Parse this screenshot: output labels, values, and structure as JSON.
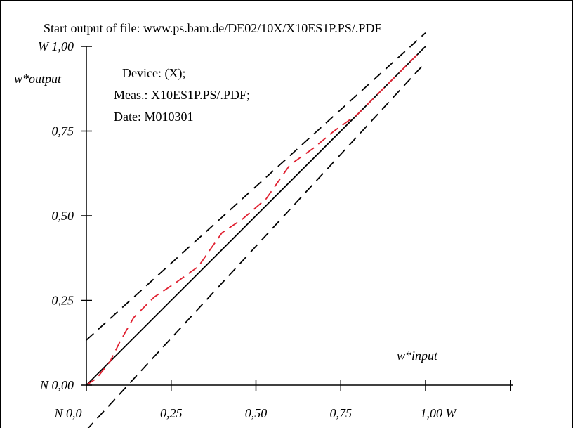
{
  "chart_data": {
    "type": "line",
    "title": "Start output of file: www.ps.bam.de/DE02/10X/X10ES1P.PS/.PDF",
    "info_lines": [
      "Device: (X);",
      "Meas.: X10ES1P.PS/.PDF;",
      "Date: M010301"
    ],
    "xlabel": "w*input",
    "ylabel": "w*output",
    "xlim": [
      0,
      1.25
    ],
    "ylim": [
      0,
      1
    ],
    "x_ticks": [
      {
        "value": 0.0,
        "label": "N  0,0"
      },
      {
        "value": 0.25,
        "label": "0,25"
      },
      {
        "value": 0.5,
        "label": "0,50"
      },
      {
        "value": 0.75,
        "label": "0,75"
      },
      {
        "value": 1.0,
        "label": "1,00  W"
      }
    ],
    "x_tick_extra": [
      1.25
    ],
    "y_ticks": [
      {
        "value": 0.0,
        "label": "N 0,00"
      },
      {
        "value": 0.25,
        "label": "0,25"
      },
      {
        "value": 0.5,
        "label": "0,50"
      },
      {
        "value": 0.75,
        "label": "0,75"
      },
      {
        "value": 1.0,
        "label": "W 1,00"
      }
    ],
    "series": [
      {
        "style": "solid",
        "color": "#000000",
        "x": [
          0,
          1
        ],
        "y": [
          0,
          1
        ]
      },
      {
        "style": "dashed",
        "color": "#000000",
        "x": [
          0,
          1
        ],
        "y": [
          0.133,
          1.04
        ]
      },
      {
        "style": "dashed",
        "color": "#000000",
        "x": [
          0,
          1
        ],
        "y": [
          -0.133,
          0.953
        ]
      },
      {
        "style": "dashed",
        "color": "#e02030",
        "x": [
          0,
          0.03,
          0.07,
          0.1,
          0.14,
          0.2,
          0.26,
          0.33,
          0.4,
          0.46,
          0.53,
          0.6,
          0.67,
          0.73,
          0.8,
          0.87,
          0.93,
          0.98
        ],
        "y": [
          0,
          0.02,
          0.07,
          0.13,
          0.2,
          0.26,
          0.3,
          0.35,
          0.45,
          0.49,
          0.55,
          0.65,
          0.7,
          0.75,
          0.8,
          0.87,
          0.93,
          0.98
        ]
      }
    ]
  }
}
